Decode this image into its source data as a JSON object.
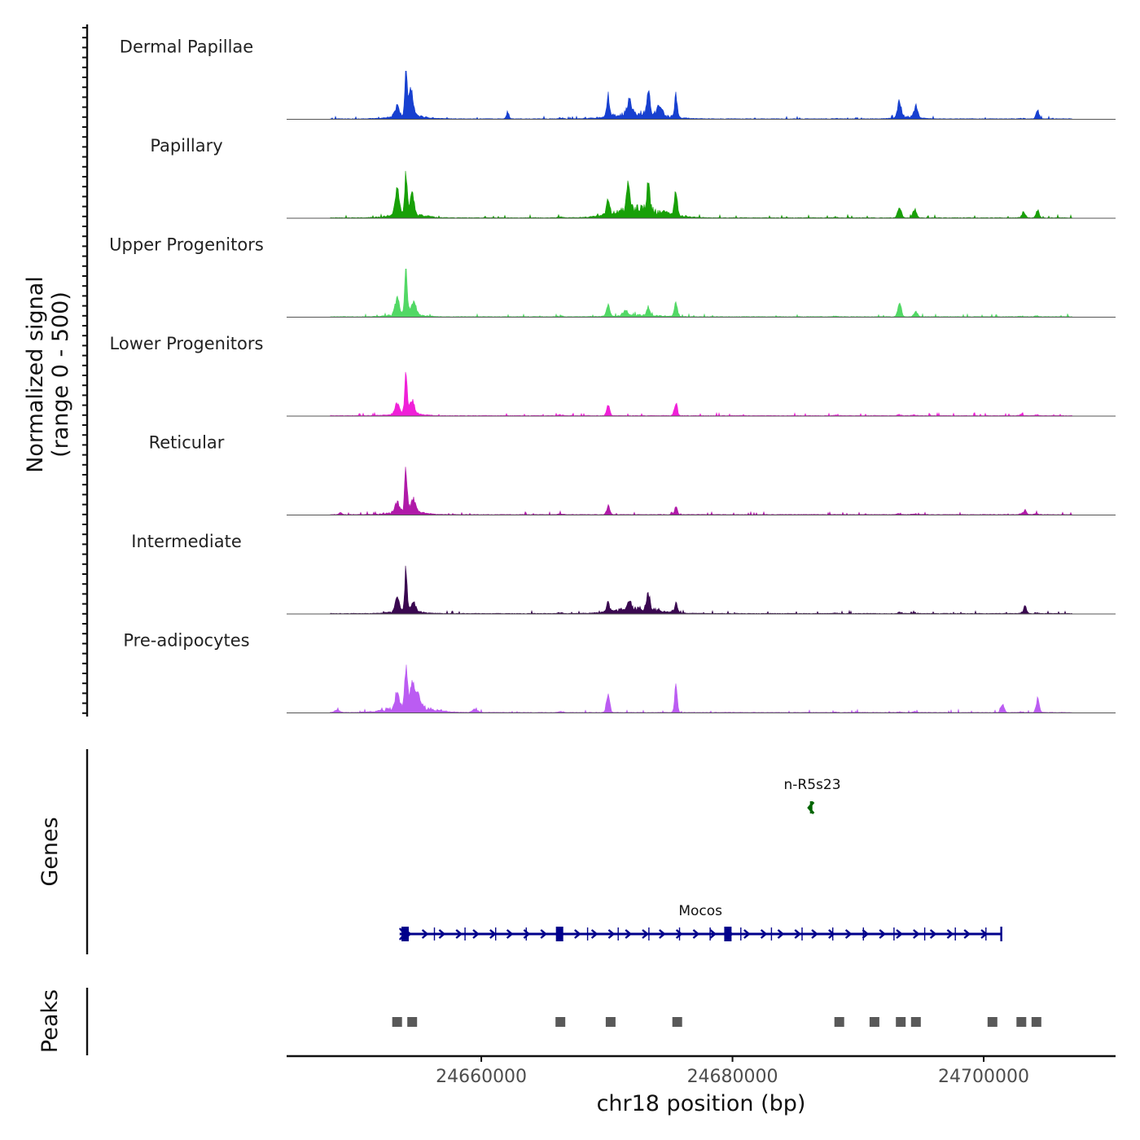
{
  "chart_data": {
    "type": "area",
    "title": "",
    "ylabel": "Normalized signal\n(range 0 - 500)",
    "ylabel_lines": [
      "Normalized signal",
      "(range 0 - 500)"
    ],
    "y_range": [
      0,
      500
    ],
    "xlabel": "chr18 position (bp)",
    "x_range": [
      24644500,
      24710500
    ],
    "x_ticks": [
      24660000,
      24680000,
      24700000
    ],
    "x_tick_labels": [
      "24660000",
      "24680000",
      "24700000"
    ],
    "baseline_color": "#555555",
    "peaks_common": [
      {
        "x": 24653300,
        "h": 0.1,
        "w": 260
      },
      {
        "x": 24654100,
        "h": 0.11,
        "w": 300
      },
      {
        "x": 24666300,
        "h": 0.06,
        "w": 240
      },
      {
        "x": 24670100,
        "h": 0.09,
        "w": 220
      },
      {
        "x": 24675400,
        "h": 0.09,
        "w": 220
      },
      {
        "x": 24688200,
        "h": 0.03,
        "w": 220
      },
      {
        "x": 24693300,
        "h": 0.06,
        "w": 240
      },
      {
        "x": 24694500,
        "h": 0.05,
        "w": 220
      },
      {
        "x": 24703000,
        "h": 0.04,
        "w": 220
      },
      {
        "x": 24704200,
        "h": 0.05,
        "w": 220
      }
    ],
    "series": [
      {
        "name": "Dermal Papillae",
        "color": "#1740d0",
        "peaks": [
          {
            "x": 24653300,
            "h": 0.22,
            "w": 240
          },
          {
            "x": 24654000,
            "h": 1.0,
            "w": 120
          },
          {
            "x": 24654400,
            "h": 0.55,
            "w": 260
          },
          {
            "x": 24662100,
            "h": 0.14,
            "w": 150
          },
          {
            "x": 24670100,
            "h": 0.38,
            "w": 180
          },
          {
            "x": 24671800,
            "h": 0.32,
            "w": 230
          },
          {
            "x": 24673300,
            "h": 0.55,
            "w": 170
          },
          {
            "x": 24674200,
            "h": 0.24,
            "w": 280
          },
          {
            "x": 24675500,
            "h": 0.48,
            "w": 150
          },
          {
            "x": 24693300,
            "h": 0.38,
            "w": 200
          },
          {
            "x": 24694600,
            "h": 0.26,
            "w": 200
          },
          {
            "x": 24704300,
            "h": 0.18,
            "w": 170
          }
        ],
        "broad": [
          {
            "x": 24672500,
            "h": 0.14,
            "w": 2600
          },
          {
            "x": 24654100,
            "h": 0.08,
            "w": 1800
          },
          {
            "x": 24693900,
            "h": 0.05,
            "w": 1200
          }
        ]
      },
      {
        "name": "Papillary",
        "color": "#18a008",
        "peaks": [
          {
            "x": 24653300,
            "h": 0.5,
            "w": 220
          },
          {
            "x": 24654000,
            "h": 0.85,
            "w": 140
          },
          {
            "x": 24654500,
            "h": 0.5,
            "w": 220
          },
          {
            "x": 24670100,
            "h": 0.3,
            "w": 180
          },
          {
            "x": 24671700,
            "h": 0.6,
            "w": 180
          },
          {
            "x": 24673300,
            "h": 0.65,
            "w": 170
          },
          {
            "x": 24675500,
            "h": 0.5,
            "w": 160
          },
          {
            "x": 24693300,
            "h": 0.22,
            "w": 200
          },
          {
            "x": 24694500,
            "h": 0.18,
            "w": 200
          },
          {
            "x": 24703200,
            "h": 0.13,
            "w": 170
          },
          {
            "x": 24704300,
            "h": 0.16,
            "w": 170
          }
        ],
        "broad": [
          {
            "x": 24672600,
            "h": 0.22,
            "w": 2600
          },
          {
            "x": 24654000,
            "h": 0.1,
            "w": 1700
          }
        ]
      },
      {
        "name": "Upper Progenitors",
        "color": "#52d865",
        "peaks": [
          {
            "x": 24653300,
            "h": 0.35,
            "w": 220
          },
          {
            "x": 24654000,
            "h": 1.0,
            "w": 140
          },
          {
            "x": 24654600,
            "h": 0.28,
            "w": 260
          },
          {
            "x": 24670100,
            "h": 0.2,
            "w": 180
          },
          {
            "x": 24671500,
            "h": 0.12,
            "w": 220
          },
          {
            "x": 24673300,
            "h": 0.14,
            "w": 200
          },
          {
            "x": 24675500,
            "h": 0.3,
            "w": 150
          },
          {
            "x": 24693300,
            "h": 0.28,
            "w": 200
          },
          {
            "x": 24694600,
            "h": 0.1,
            "w": 200
          }
        ],
        "broad": [
          {
            "x": 24654000,
            "h": 0.08,
            "w": 1500
          },
          {
            "x": 24672500,
            "h": 0.04,
            "w": 2400
          }
        ]
      },
      {
        "name": "Lower Progenitors",
        "color": "#f020d8",
        "peaks": [
          {
            "x": 24653300,
            "h": 0.2,
            "w": 220
          },
          {
            "x": 24654000,
            "h": 1.0,
            "w": 130
          },
          {
            "x": 24654500,
            "h": 0.28,
            "w": 240
          },
          {
            "x": 24670100,
            "h": 0.2,
            "w": 170
          },
          {
            "x": 24675500,
            "h": 0.28,
            "w": 150
          }
        ],
        "broad": [
          {
            "x": 24654000,
            "h": 0.07,
            "w": 1400
          }
        ]
      },
      {
        "name": "Reticular",
        "color": "#b01aa8",
        "peaks": [
          {
            "x": 24653300,
            "h": 0.18,
            "w": 220
          },
          {
            "x": 24654000,
            "h": 1.0,
            "w": 130
          },
          {
            "x": 24654600,
            "h": 0.28,
            "w": 240
          },
          {
            "x": 24648800,
            "h": 0.05,
            "w": 150
          },
          {
            "x": 24670100,
            "h": 0.18,
            "w": 170
          },
          {
            "x": 24675500,
            "h": 0.15,
            "w": 150
          },
          {
            "x": 24703300,
            "h": 0.08,
            "w": 170
          }
        ],
        "broad": [
          {
            "x": 24654000,
            "h": 0.1,
            "w": 1500
          }
        ]
      },
      {
        "name": "Intermediate",
        "color": "#3a0850",
        "peaks": [
          {
            "x": 24653300,
            "h": 0.35,
            "w": 200
          },
          {
            "x": 24654000,
            "h": 1.0,
            "w": 130
          },
          {
            "x": 24654600,
            "h": 0.2,
            "w": 240
          },
          {
            "x": 24670100,
            "h": 0.18,
            "w": 170
          },
          {
            "x": 24671800,
            "h": 0.2,
            "w": 200
          },
          {
            "x": 24673300,
            "h": 0.35,
            "w": 170
          },
          {
            "x": 24675500,
            "h": 0.2,
            "w": 150
          },
          {
            "x": 24703300,
            "h": 0.16,
            "w": 170
          }
        ],
        "broad": [
          {
            "x": 24672500,
            "h": 0.12,
            "w": 2500
          },
          {
            "x": 24654000,
            "h": 0.07,
            "w": 1500
          }
        ]
      },
      {
        "name": "Pre-adipocytes",
        "color": "#bb5cf2",
        "peaks": [
          {
            "x": 24653300,
            "h": 0.3,
            "w": 220
          },
          {
            "x": 24654000,
            "h": 1.0,
            "w": 140
          },
          {
            "x": 24654500,
            "h": 0.55,
            "w": 260
          },
          {
            "x": 24655000,
            "h": 0.3,
            "w": 260
          },
          {
            "x": 24670100,
            "h": 0.42,
            "w": 170
          },
          {
            "x": 24675500,
            "h": 0.55,
            "w": 150
          },
          {
            "x": 24701500,
            "h": 0.2,
            "w": 180
          },
          {
            "x": 24704300,
            "h": 0.3,
            "w": 170
          },
          {
            "x": 24659500,
            "h": 0.07,
            "w": 300
          },
          {
            "x": 24648500,
            "h": 0.05,
            "w": 300
          }
        ],
        "broad": [
          {
            "x": 24654300,
            "h": 0.14,
            "w": 2200
          }
        ]
      }
    ],
    "genes_track": {
      "label": "Genes",
      "genes": [
        {
          "name": "n-R5s23",
          "start": 24686200,
          "end": 24686500,
          "strand": "-",
          "color": "#006400"
        },
        {
          "name": "Mocos",
          "start": 24653500,
          "end": 24701400,
          "strand": "+",
          "color": "#00008b",
          "exons": [
            24653900,
            24666200,
            24679600
          ]
        }
      ]
    },
    "peaks_track": {
      "label": "Peaks",
      "color": "#595959",
      "regions": [
        24653300,
        24654500,
        24666300,
        24670300,
        24675600,
        24688500,
        24691300,
        24693400,
        24694600,
        24700700,
        24703000,
        24704200
      ]
    }
  }
}
